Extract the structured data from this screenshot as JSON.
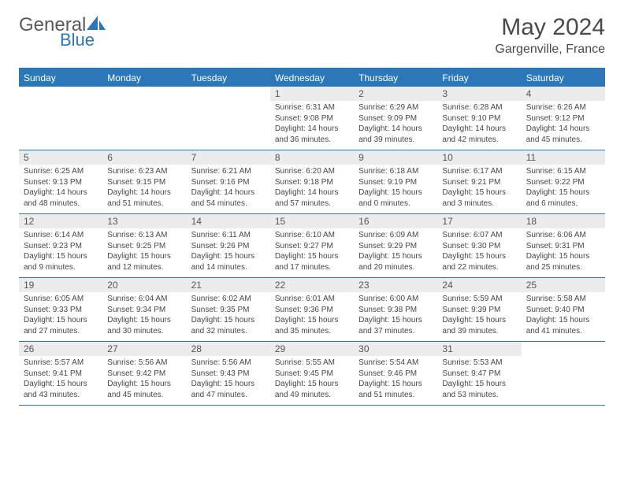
{
  "brand": {
    "part1": "General",
    "part2": "Blue"
  },
  "title": "May 2024",
  "location": "Gargenville, France",
  "colors": {
    "accent": "#2b77b8",
    "daynum_bg": "#ececec",
    "text_gray": "#4a4a4a",
    "body_text": "#474747"
  },
  "weekdays": [
    "Sunday",
    "Monday",
    "Tuesday",
    "Wednesday",
    "Thursday",
    "Friday",
    "Saturday"
  ],
  "weeks": [
    [
      null,
      null,
      null,
      {
        "n": "1",
        "sr": "Sunrise: 6:31 AM",
        "ss": "Sunset: 9:08 PM",
        "dl1": "Daylight: 14 hours",
        "dl2": "and 36 minutes."
      },
      {
        "n": "2",
        "sr": "Sunrise: 6:29 AM",
        "ss": "Sunset: 9:09 PM",
        "dl1": "Daylight: 14 hours",
        "dl2": "and 39 minutes."
      },
      {
        "n": "3",
        "sr": "Sunrise: 6:28 AM",
        "ss": "Sunset: 9:10 PM",
        "dl1": "Daylight: 14 hours",
        "dl2": "and 42 minutes."
      },
      {
        "n": "4",
        "sr": "Sunrise: 6:26 AM",
        "ss": "Sunset: 9:12 PM",
        "dl1": "Daylight: 14 hours",
        "dl2": "and 45 minutes."
      }
    ],
    [
      {
        "n": "5",
        "sr": "Sunrise: 6:25 AM",
        "ss": "Sunset: 9:13 PM",
        "dl1": "Daylight: 14 hours",
        "dl2": "and 48 minutes."
      },
      {
        "n": "6",
        "sr": "Sunrise: 6:23 AM",
        "ss": "Sunset: 9:15 PM",
        "dl1": "Daylight: 14 hours",
        "dl2": "and 51 minutes."
      },
      {
        "n": "7",
        "sr": "Sunrise: 6:21 AM",
        "ss": "Sunset: 9:16 PM",
        "dl1": "Daylight: 14 hours",
        "dl2": "and 54 minutes."
      },
      {
        "n": "8",
        "sr": "Sunrise: 6:20 AM",
        "ss": "Sunset: 9:18 PM",
        "dl1": "Daylight: 14 hours",
        "dl2": "and 57 minutes."
      },
      {
        "n": "9",
        "sr": "Sunrise: 6:18 AM",
        "ss": "Sunset: 9:19 PM",
        "dl1": "Daylight: 15 hours",
        "dl2": "and 0 minutes."
      },
      {
        "n": "10",
        "sr": "Sunrise: 6:17 AM",
        "ss": "Sunset: 9:21 PM",
        "dl1": "Daylight: 15 hours",
        "dl2": "and 3 minutes."
      },
      {
        "n": "11",
        "sr": "Sunrise: 6:15 AM",
        "ss": "Sunset: 9:22 PM",
        "dl1": "Daylight: 15 hours",
        "dl2": "and 6 minutes."
      }
    ],
    [
      {
        "n": "12",
        "sr": "Sunrise: 6:14 AM",
        "ss": "Sunset: 9:23 PM",
        "dl1": "Daylight: 15 hours",
        "dl2": "and 9 minutes."
      },
      {
        "n": "13",
        "sr": "Sunrise: 6:13 AM",
        "ss": "Sunset: 9:25 PM",
        "dl1": "Daylight: 15 hours",
        "dl2": "and 12 minutes."
      },
      {
        "n": "14",
        "sr": "Sunrise: 6:11 AM",
        "ss": "Sunset: 9:26 PM",
        "dl1": "Daylight: 15 hours",
        "dl2": "and 14 minutes."
      },
      {
        "n": "15",
        "sr": "Sunrise: 6:10 AM",
        "ss": "Sunset: 9:27 PM",
        "dl1": "Daylight: 15 hours",
        "dl2": "and 17 minutes."
      },
      {
        "n": "16",
        "sr": "Sunrise: 6:09 AM",
        "ss": "Sunset: 9:29 PM",
        "dl1": "Daylight: 15 hours",
        "dl2": "and 20 minutes."
      },
      {
        "n": "17",
        "sr": "Sunrise: 6:07 AM",
        "ss": "Sunset: 9:30 PM",
        "dl1": "Daylight: 15 hours",
        "dl2": "and 22 minutes."
      },
      {
        "n": "18",
        "sr": "Sunrise: 6:06 AM",
        "ss": "Sunset: 9:31 PM",
        "dl1": "Daylight: 15 hours",
        "dl2": "and 25 minutes."
      }
    ],
    [
      {
        "n": "19",
        "sr": "Sunrise: 6:05 AM",
        "ss": "Sunset: 9:33 PM",
        "dl1": "Daylight: 15 hours",
        "dl2": "and 27 minutes."
      },
      {
        "n": "20",
        "sr": "Sunrise: 6:04 AM",
        "ss": "Sunset: 9:34 PM",
        "dl1": "Daylight: 15 hours",
        "dl2": "and 30 minutes."
      },
      {
        "n": "21",
        "sr": "Sunrise: 6:02 AM",
        "ss": "Sunset: 9:35 PM",
        "dl1": "Daylight: 15 hours",
        "dl2": "and 32 minutes."
      },
      {
        "n": "22",
        "sr": "Sunrise: 6:01 AM",
        "ss": "Sunset: 9:36 PM",
        "dl1": "Daylight: 15 hours",
        "dl2": "and 35 minutes."
      },
      {
        "n": "23",
        "sr": "Sunrise: 6:00 AM",
        "ss": "Sunset: 9:38 PM",
        "dl1": "Daylight: 15 hours",
        "dl2": "and 37 minutes."
      },
      {
        "n": "24",
        "sr": "Sunrise: 5:59 AM",
        "ss": "Sunset: 9:39 PM",
        "dl1": "Daylight: 15 hours",
        "dl2": "and 39 minutes."
      },
      {
        "n": "25",
        "sr": "Sunrise: 5:58 AM",
        "ss": "Sunset: 9:40 PM",
        "dl1": "Daylight: 15 hours",
        "dl2": "and 41 minutes."
      }
    ],
    [
      {
        "n": "26",
        "sr": "Sunrise: 5:57 AM",
        "ss": "Sunset: 9:41 PM",
        "dl1": "Daylight: 15 hours",
        "dl2": "and 43 minutes."
      },
      {
        "n": "27",
        "sr": "Sunrise: 5:56 AM",
        "ss": "Sunset: 9:42 PM",
        "dl1": "Daylight: 15 hours",
        "dl2": "and 45 minutes."
      },
      {
        "n": "28",
        "sr": "Sunrise: 5:56 AM",
        "ss": "Sunset: 9:43 PM",
        "dl1": "Daylight: 15 hours",
        "dl2": "and 47 minutes."
      },
      {
        "n": "29",
        "sr": "Sunrise: 5:55 AM",
        "ss": "Sunset: 9:45 PM",
        "dl1": "Daylight: 15 hours",
        "dl2": "and 49 minutes."
      },
      {
        "n": "30",
        "sr": "Sunrise: 5:54 AM",
        "ss": "Sunset: 9:46 PM",
        "dl1": "Daylight: 15 hours",
        "dl2": "and 51 minutes."
      },
      {
        "n": "31",
        "sr": "Sunrise: 5:53 AM",
        "ss": "Sunset: 9:47 PM",
        "dl1": "Daylight: 15 hours",
        "dl2": "and 53 minutes."
      },
      null
    ]
  ]
}
